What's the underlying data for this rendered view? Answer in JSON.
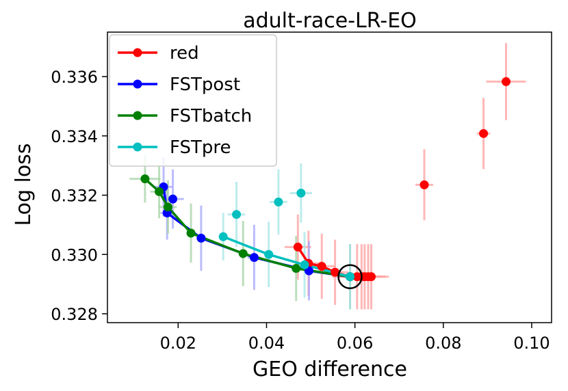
{
  "chart_data": {
    "type": "scatter",
    "title": "adult-race-LR-EO",
    "xlabel": "GEO difference",
    "ylabel": "Log loss",
    "xlim": [
      0.004,
      0.1045
    ],
    "ylim": [
      0.3277,
      0.3375
    ],
    "xticks": [
      0.02,
      0.04,
      0.06,
      0.08,
      0.1
    ],
    "xtick_labels": [
      "0.02",
      "0.04",
      "0.06",
      "0.08",
      "0.10"
    ],
    "yticks": [
      0.328,
      0.33,
      0.332,
      0.334,
      0.336
    ],
    "ytick_labels": [
      "0.328",
      "0.330",
      "0.332",
      "0.334",
      "0.336"
    ],
    "legend_position": "upper-left",
    "highlight_point": {
      "x": 0.0589,
      "y": 0.32925,
      "label": "circled reference point"
    },
    "series": [
      {
        "name": "red",
        "color": "#ff0000",
        "err_color": "#ff9f9f",
        "points": [
          {
            "x": 0.0589,
            "y": 0.32925,
            "xerr": 0.004,
            "yerr": 0.0011
          },
          {
            "x": 0.0605,
            "y": 0.32925,
            "xerr": 0.004,
            "yerr": 0.0011
          },
          {
            "x": 0.0615,
            "y": 0.32925,
            "xerr": 0.004,
            "yerr": 0.0011
          },
          {
            "x": 0.0622,
            "y": 0.32925,
            "xerr": 0.004,
            "yerr": 0.0011
          },
          {
            "x": 0.063,
            "y": 0.32925,
            "xerr": 0.004,
            "yerr": 0.0011
          },
          {
            "x": 0.0637,
            "y": 0.32925,
            "xerr": 0.004,
            "yerr": 0.0011
          },
          {
            "x": 0.0555,
            "y": 0.3294,
            "xerr": 0.003,
            "yerr": 0.0011
          },
          {
            "x": 0.0525,
            "y": 0.3296,
            "xerr": 0.003,
            "yerr": 0.0011
          },
          {
            "x": 0.0495,
            "y": 0.3297,
            "xerr": 0.003,
            "yerr": 0.0011
          },
          {
            "x": 0.0471,
            "y": 0.33025,
            "xerr": 0.003,
            "yerr": 0.0011
          },
          {
            "x": 0.0757,
            "y": 0.33235,
            "xerr": 0.002,
            "yerr": 0.0012
          },
          {
            "x": 0.0891,
            "y": 0.33408,
            "xerr": 0.0015,
            "yerr": 0.0012
          },
          {
            "x": 0.0942,
            "y": 0.33583,
            "xerr": 0.0045,
            "yerr": 0.0013
          }
        ],
        "line_order": [
          9,
          8,
          7,
          6,
          0,
          1,
          2,
          3,
          4,
          5
        ]
      },
      {
        "name": "FSTpost",
        "color": "#0000ff",
        "err_color": "#a6a6ff",
        "points": [
          {
            "x": 0.0167,
            "y": 0.33228,
            "xerr": 0.002,
            "yerr": 0.001
          },
          {
            "x": 0.0188,
            "y": 0.33187,
            "xerr": 0.0025,
            "yerr": 0.001
          },
          {
            "x": 0.0175,
            "y": 0.3314,
            "xerr": 0.0015,
            "yerr": 0.0009
          },
          {
            "x": 0.0252,
            "y": 0.33055,
            "xerr": 0.001,
            "yerr": 0.0011
          },
          {
            "x": 0.0372,
            "y": 0.3299,
            "xerr": 0.0015,
            "yerr": 0.0011
          },
          {
            "x": 0.0496,
            "y": 0.32945,
            "xerr": 0.001,
            "yerr": 0.001
          },
          {
            "x": 0.0589,
            "y": 0.32925,
            "xerr": 0.0005,
            "yerr": 0.0011
          }
        ],
        "line_order": [
          0,
          2,
          3,
          4,
          5,
          6
        ]
      },
      {
        "name": "FSTbatch",
        "color": "#008000",
        "err_color": "#a6d3a6",
        "points": [
          {
            "x": 0.0125,
            "y": 0.33255,
            "xerr": 0.0035,
            "yerr": 0.0008
          },
          {
            "x": 0.0157,
            "y": 0.33212,
            "xerr": 0.002,
            "yerr": 0.0009
          },
          {
            "x": 0.0177,
            "y": 0.3316,
            "xerr": 0.002,
            "yerr": 0.0009
          },
          {
            "x": 0.0229,
            "y": 0.33072,
            "xerr": 0.001,
            "yerr": 0.001
          },
          {
            "x": 0.0347,
            "y": 0.33003,
            "xerr": 0.001,
            "yerr": 0.0011
          },
          {
            "x": 0.0467,
            "y": 0.32953,
            "xerr": 0.001,
            "yerr": 0.0011
          },
          {
            "x": 0.0589,
            "y": 0.32925,
            "xerr": 0.0005,
            "yerr": 0.0011
          }
        ],
        "line_order": [
          0,
          1,
          2,
          3,
          4,
          5,
          6
        ]
      },
      {
        "name": "FSTpre",
        "color": "#00bfbf",
        "err_color": "#a6e6e6",
        "points": [
          {
            "x": 0.0332,
            "y": 0.33135,
            "xerr": 0.002,
            "yerr": 0.0011
          },
          {
            "x": 0.0427,
            "y": 0.33177,
            "xerr": 0.002,
            "yerr": 0.0011
          },
          {
            "x": 0.0478,
            "y": 0.33207,
            "xerr": 0.0025,
            "yerr": 0.001
          },
          {
            "x": 0.0302,
            "y": 0.3306,
            "xerr": 0.001,
            "yerr": 0.0008
          },
          {
            "x": 0.0405,
            "y": 0.33,
            "xerr": 0.001,
            "yerr": 0.0011
          },
          {
            "x": 0.0486,
            "y": 0.32965,
            "xerr": 0.0008,
            "yerr": 0.0011
          },
          {
            "x": 0.0589,
            "y": 0.32925,
            "xerr": 0.0005,
            "yerr": 0.0011
          }
        ],
        "line_order": [
          3,
          4,
          5,
          6
        ]
      }
    ]
  }
}
